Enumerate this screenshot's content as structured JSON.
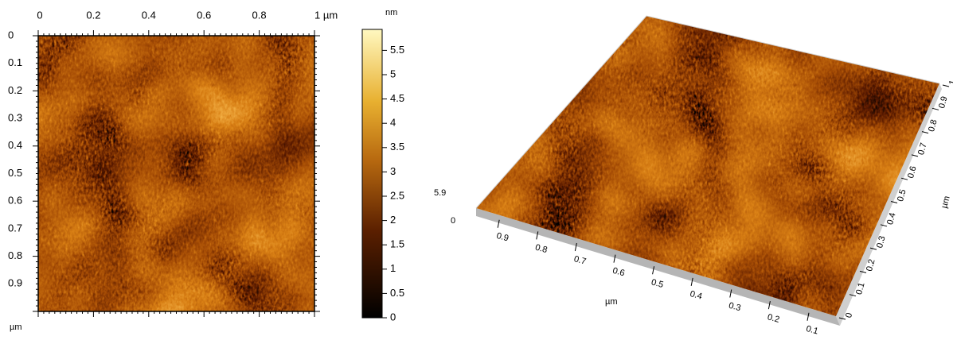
{
  "map2d": {
    "x_ticks": [
      "0",
      "0.2",
      "0.4",
      "0.6",
      "0.8",
      "1 µm"
    ],
    "y_ticks": [
      "0",
      "0.1",
      "0.2",
      "0.3",
      "0.4",
      "0.5",
      "0.6",
      "0.7",
      "0.8",
      "0.9"
    ],
    "y_unit": "µm"
  },
  "colorbar": {
    "unit": "nm",
    "ticks": [
      "5.5",
      "5",
      "4.5",
      "4",
      "3.5",
      "3",
      "2.5",
      "2",
      "1.5",
      "1",
      "0.5",
      "0"
    ]
  },
  "view3d": {
    "z_ticks": [
      "5.9",
      "0"
    ],
    "x_ticks": [
      "0.9",
      "0.8",
      "0.7",
      "0.6",
      "0.5",
      "0.4",
      "0.3",
      "0.2",
      "0.1"
    ],
    "x_unit": "µm",
    "y_ticks": [
      "0",
      "0.1",
      "0.2",
      "0.3",
      "0.4",
      "0.5",
      "0.6",
      "0.7",
      "0.8",
      "0.9",
      "1"
    ],
    "y_unit": "µm"
  }
}
